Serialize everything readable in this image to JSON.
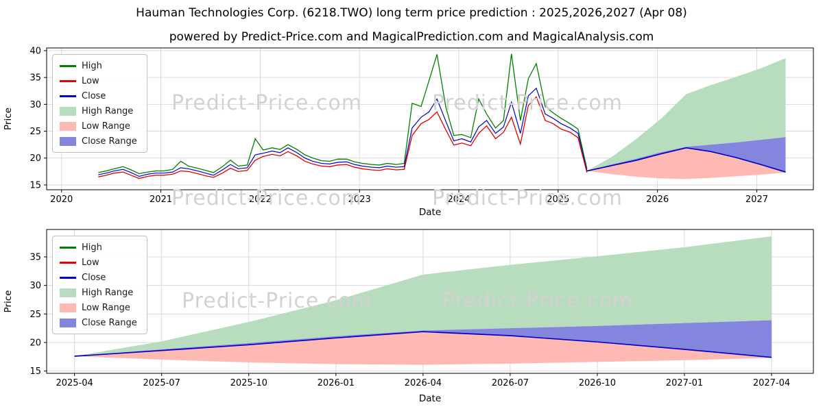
{
  "title": "Hauman Technologies Corp. (6218.TWO) long term price prediction : 2025,2026,2027 (Apr 08)",
  "subtitle": "powered by Predict-Price.com and MagicalPrediction.com and MagicalAnalysis.com",
  "watermark": "Predict-Price.com",
  "colors": {
    "high": "#008000",
    "low": "#e60000",
    "close": "#0000cd",
    "high_range": "#b7dcbe",
    "low_range": "#ffb9b3",
    "close_range": "#8486de",
    "grid": "#d9d9d9",
    "axis": "#000000",
    "watermark": "#d2d2d2"
  },
  "legend": [
    {
      "label": "High",
      "type": "line",
      "color_key": "high"
    },
    {
      "label": "Low",
      "type": "line",
      "color_key": "low"
    },
    {
      "label": "Close",
      "type": "line",
      "color_key": "close"
    },
    {
      "label": "High Range",
      "type": "patch",
      "color_key": "high_range"
    },
    {
      "label": "Low Range",
      "type": "patch",
      "color_key": "low_range"
    },
    {
      "label": "Close Range",
      "type": "patch",
      "color_key": "close_range"
    }
  ],
  "chart_data": [
    {
      "type": "line",
      "title": "",
      "xlabel": "Date",
      "ylabel": "Price",
      "xlim": [
        2019.85,
        2027.57
      ],
      "ylim": [
        14.1,
        40.5
      ],
      "grid": true,
      "legend_position": "top-left",
      "xticks": [
        2020,
        2021,
        2022,
        2023,
        2024,
        2025,
        2026,
        2027
      ],
      "xtick_labels": [
        "2020",
        "2021",
        "2022",
        "2023",
        "2024",
        "2025",
        "2026",
        "2027"
      ],
      "yticks": [
        15,
        20,
        25,
        30,
        35,
        40
      ],
      "history": {
        "x": [
          2020.37,
          2020.45,
          2020.53,
          2020.62,
          2020.7,
          2020.78,
          2020.87,
          2020.95,
          2021.03,
          2021.12,
          2021.2,
          2021.28,
          2021.37,
          2021.45,
          2021.53,
          2021.62,
          2021.7,
          2021.78,
          2021.87,
          2021.95,
          2022.03,
          2022.12,
          2022.2,
          2022.28,
          2022.37,
          2022.45,
          2022.53,
          2022.62,
          2022.7,
          2022.78,
          2022.87,
          2022.95,
          2023.03,
          2023.12,
          2023.2,
          2023.28,
          2023.37,
          2023.45,
          2023.53,
          2023.62,
          2023.7,
          2023.78,
          2023.87,
          2023.95,
          2024.03,
          2024.12,
          2024.2,
          2024.28,
          2024.37,
          2024.45,
          2024.53,
          2024.62,
          2024.7,
          2024.78,
          2024.87,
          2024.95,
          2025.03,
          2025.12,
          2025.2,
          2025.29
        ],
        "high": [
          17.3,
          17.6,
          18.0,
          18.4,
          17.8,
          17.1,
          17.4,
          17.6,
          17.6,
          17.9,
          19.4,
          18.5,
          18.1,
          17.7,
          17.3,
          18.4,
          19.6,
          18.5,
          18.7,
          23.6,
          21.5,
          21.9,
          21.6,
          22.5,
          21.6,
          20.6,
          20.0,
          19.5,
          19.4,
          19.8,
          19.8,
          19.3,
          19.0,
          18.8,
          18.7,
          19.0,
          18.8,
          19.0,
          30.2,
          29.6,
          34.4,
          39.3,
          29.4,
          24.2,
          24.4,
          23.8,
          31.0,
          28.2,
          25.6,
          27.0,
          39.4,
          27.0,
          34.8,
          37.6,
          29.6,
          28.4,
          27.4,
          26.4,
          25.4,
          18.0
        ],
        "low": [
          16.5,
          16.8,
          17.2,
          17.4,
          16.8,
          16.2,
          16.6,
          16.8,
          16.8,
          17.0,
          17.6,
          17.5,
          17.1,
          16.7,
          16.4,
          17.2,
          18.1,
          17.5,
          17.7,
          19.6,
          20.3,
          20.7,
          20.4,
          21.2,
          20.4,
          19.4,
          18.9,
          18.5,
          18.4,
          18.7,
          18.8,
          18.3,
          18.0,
          17.8,
          17.7,
          18.0,
          17.8,
          17.9,
          24.2,
          26.4,
          27.2,
          28.6,
          25.2,
          22.4,
          22.8,
          22.3,
          24.6,
          26.0,
          23.6,
          24.8,
          27.6,
          22.6,
          29.8,
          31.4,
          27.0,
          26.4,
          25.4,
          24.8,
          23.8,
          17.3
        ],
        "close": [
          16.9,
          17.2,
          17.6,
          17.9,
          17.3,
          16.6,
          17.0,
          17.2,
          17.2,
          17.4,
          18.2,
          18.0,
          17.6,
          17.2,
          16.8,
          17.8,
          18.8,
          18.0,
          18.2,
          20.6,
          20.9,
          21.3,
          21.0,
          21.9,
          21.0,
          20.0,
          19.4,
          19.0,
          18.9,
          19.2,
          19.3,
          18.8,
          18.5,
          18.3,
          18.2,
          18.5,
          18.3,
          18.4,
          25.6,
          27.6,
          28.6,
          31.0,
          26.8,
          23.2,
          23.6,
          23.0,
          25.8,
          27.0,
          24.6,
          25.8,
          30.4,
          24.6,
          31.6,
          33.0,
          28.2,
          27.4,
          26.4,
          25.6,
          24.6,
          17.6
        ]
      },
      "forecast": {
        "x": [
          2025.29,
          2025.54,
          2025.79,
          2026.04,
          2026.29,
          2026.54,
          2026.79,
          2027.04,
          2027.29
        ],
        "close": [
          17.6,
          18.6,
          19.6,
          20.8,
          21.9,
          21.2,
          20.1,
          18.8,
          17.4
        ],
        "close_range_upper": [
          17.6,
          18.8,
          19.9,
          21.1,
          22.1,
          22.5,
          22.9,
          23.4,
          23.9
        ],
        "high_range_upper": [
          17.6,
          20.2,
          23.6,
          27.4,
          31.9,
          33.6,
          35.1,
          36.7,
          38.6
        ],
        "low_range_lower": [
          17.6,
          17.0,
          16.5,
          16.2,
          16.1,
          16.3,
          16.6,
          16.9,
          17.3
        ]
      }
    },
    {
      "type": "line",
      "title": "",
      "xlabel": "Date",
      "ylabel": "Price",
      "xlim": [
        2025.21,
        2027.41
      ],
      "ylim": [
        14.6,
        39.8
      ],
      "grid": true,
      "legend_position": "top-left",
      "xticks": [
        2025.29,
        2025.54,
        2025.79,
        2026.04,
        2026.29,
        2026.54,
        2026.79,
        2027.04,
        2027.29
      ],
      "xtick_labels": [
        "2025-04",
        "2025-07",
        "2025-10",
        "2026-01",
        "2026-04",
        "2026-07",
        "2026-10",
        "2027-01",
        "2027-04"
      ],
      "yticks": [
        15,
        20,
        25,
        30,
        35
      ],
      "forecast": {
        "x": [
          2025.29,
          2025.54,
          2025.79,
          2026.04,
          2026.29,
          2026.54,
          2026.79,
          2027.04,
          2027.29
        ],
        "close": [
          17.6,
          18.6,
          19.6,
          20.8,
          21.9,
          21.2,
          20.1,
          18.8,
          17.4
        ],
        "close_range_upper": [
          17.6,
          18.8,
          19.9,
          21.1,
          22.1,
          22.5,
          22.9,
          23.4,
          23.9
        ],
        "high_range_upper": [
          17.6,
          20.2,
          23.6,
          27.4,
          31.9,
          33.6,
          35.1,
          36.7,
          38.6
        ],
        "low_range_lower": [
          17.6,
          17.0,
          16.5,
          16.2,
          16.1,
          16.3,
          16.6,
          16.9,
          17.3
        ]
      }
    }
  ]
}
